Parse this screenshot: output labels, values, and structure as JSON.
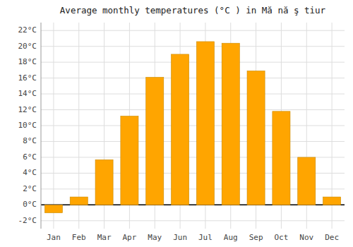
{
  "chart_data": {
    "type": "bar",
    "title": "Average monthly temperatures (°C ) in Mă nă ş tiur",
    "categories": [
      "Jan",
      "Feb",
      "Mar",
      "Apr",
      "May",
      "Jun",
      "Jul",
      "Aug",
      "Sep",
      "Oct",
      "Nov",
      "Dec"
    ],
    "values": [
      -1.0,
      1.0,
      5.7,
      11.2,
      16.1,
      19.0,
      20.6,
      20.4,
      16.9,
      11.8,
      6.0,
      1.0
    ],
    "color": "#FFA500",
    "ylim": [
      -3,
      23
    ],
    "yticks": [
      {
        "value": -2,
        "label": "-2°C"
      },
      {
        "value": 0,
        "label": "0°C"
      },
      {
        "value": 2,
        "label": "2°C"
      },
      {
        "value": 4,
        "label": "4°C"
      },
      {
        "value": 6,
        "label": "6°C"
      },
      {
        "value": 8,
        "label": "8°C"
      },
      {
        "value": 10,
        "label": "10°C"
      },
      {
        "value": 12,
        "label": "12°C"
      },
      {
        "value": 14,
        "label": "14°C"
      },
      {
        "value": 16,
        "label": "16°C"
      },
      {
        "value": 18,
        "label": "18°C"
      },
      {
        "value": 20,
        "label": "20°C"
      },
      {
        "value": 22,
        "label": "22°C"
      }
    ],
    "grid": true
  }
}
